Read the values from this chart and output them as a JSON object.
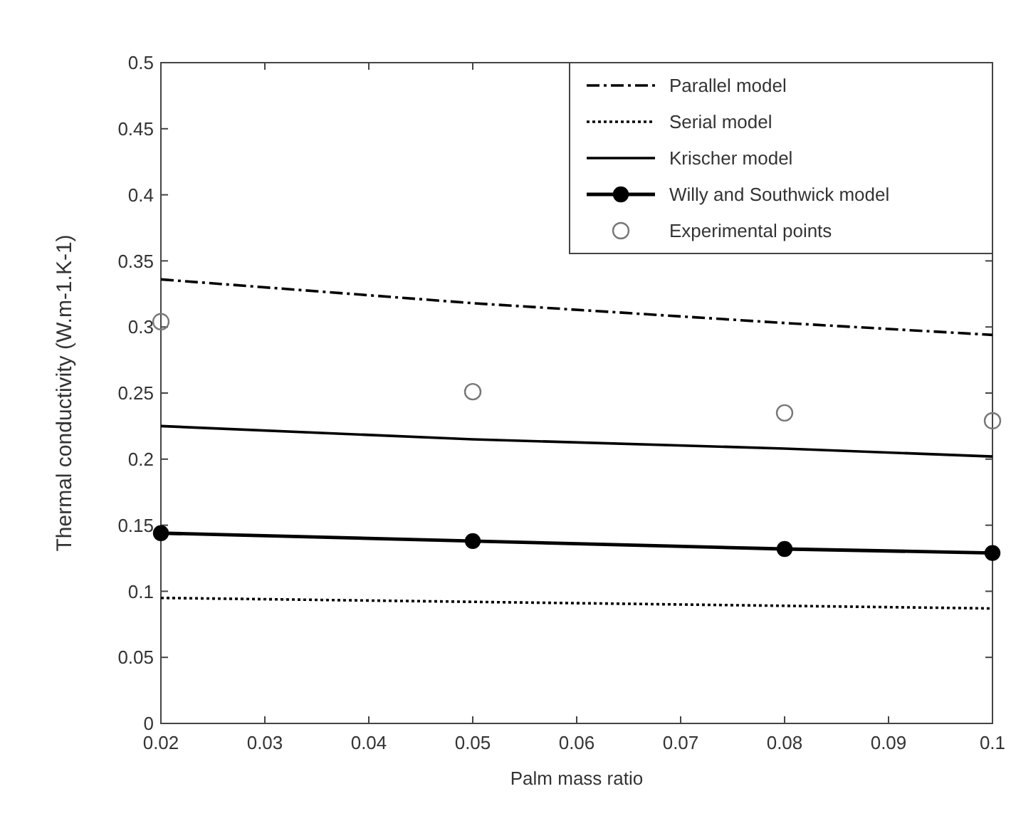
{
  "chart_data": {
    "type": "line",
    "xlabel": "Palm mass ratio",
    "ylabel": "Thermal conductivity (W.m-1.K-1)",
    "x": [
      0.02,
      0.05,
      0.08,
      0.1
    ],
    "xlim": [
      0.02,
      0.1
    ],
    "xticks": [
      0.02,
      0.03,
      0.04,
      0.05,
      0.06,
      0.07,
      0.08,
      0.09,
      0.1
    ],
    "ylim": [
      0,
      0.5
    ],
    "yticks": [
      0,
      0.05,
      0.1,
      0.15,
      0.2,
      0.25,
      0.3,
      0.35,
      0.4,
      0.45,
      0.5
    ],
    "grid": false,
    "legend": "top right",
    "series": [
      {
        "name": "Parallel model",
        "color": "#000000",
        "values": [
          0.336,
          0.318,
          0.303,
          0.294
        ],
        "line_style": "dashed",
        "marker": "none"
      },
      {
        "name": "Serial model",
        "color": "#000000",
        "values": [
          0.095,
          0.092,
          0.089,
          0.087
        ],
        "line_style": "dotted",
        "marker": "none"
      },
      {
        "name": "Krischer model",
        "color": "#000000",
        "values": [
          0.225,
          0.215,
          0.208,
          0.202
        ],
        "line_style": "solid",
        "marker": "none"
      },
      {
        "name": "Willy and Southwick model",
        "color": "#000000",
        "values": [
          0.144,
          0.138,
          0.132,
          0.129
        ],
        "line_style": "solid",
        "marker": "circle"
      },
      {
        "name": "Experimental points",
        "type": "scatter",
        "color": "#777777",
        "values": [
          0.304,
          0.251,
          0.235,
          0.229
        ],
        "marker": "circle"
      }
    ]
  }
}
